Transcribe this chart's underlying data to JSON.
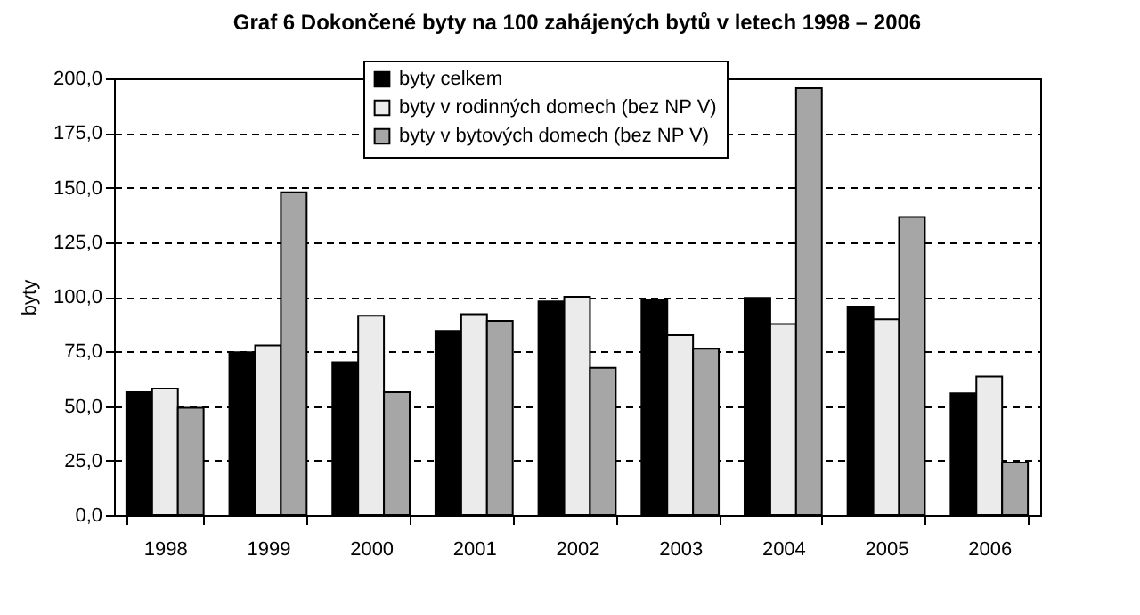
{
  "chart_data": {
    "type": "bar",
    "title": "Graf 6 Dokončené byty na 100 zahájených bytů v letech 1998 – 2006",
    "ylabel": "byty",
    "categories": [
      "1998",
      "1999",
      "2000",
      "2001",
      "2002",
      "2003",
      "2004",
      "2005",
      "2006"
    ],
    "series": [
      {
        "name": "byty celkem",
        "color": "#000000",
        "values": [
          56.3,
          74.6,
          70.0,
          84.4,
          97.9,
          98.7,
          99.5,
          95.5,
          55.8
        ]
      },
      {
        "name": "byty v rodinných domech (bez NP V)",
        "color": "#ebebeb",
        "values": [
          58.0,
          77.8,
          91.3,
          92.0,
          100.0,
          82.5,
          87.6,
          89.7,
          63.5
        ]
      },
      {
        "name": "byty v bytových domech (bez NP V)",
        "color": "#a6a6a6",
        "values": [
          49.2,
          147.9,
          56.3,
          89.0,
          67.5,
          76.2,
          195.5,
          136.5,
          24.1
        ]
      }
    ],
    "ylim": [
      0,
      200
    ],
    "yticks": [
      {
        "value": 0,
        "label": "0,0"
      },
      {
        "value": 25,
        "label": "25,0"
      },
      {
        "value": 50,
        "label": "50,0"
      },
      {
        "value": 75,
        "label": "75,0"
      },
      {
        "value": 100,
        "label": "100,0"
      },
      {
        "value": 125,
        "label": "125,0"
      },
      {
        "value": 150,
        "label": "150,0"
      },
      {
        "value": 175,
        "label": "175,0"
      },
      {
        "value": 200,
        "label": "200,0"
      }
    ],
    "grid": "y",
    "legend": "top"
  }
}
